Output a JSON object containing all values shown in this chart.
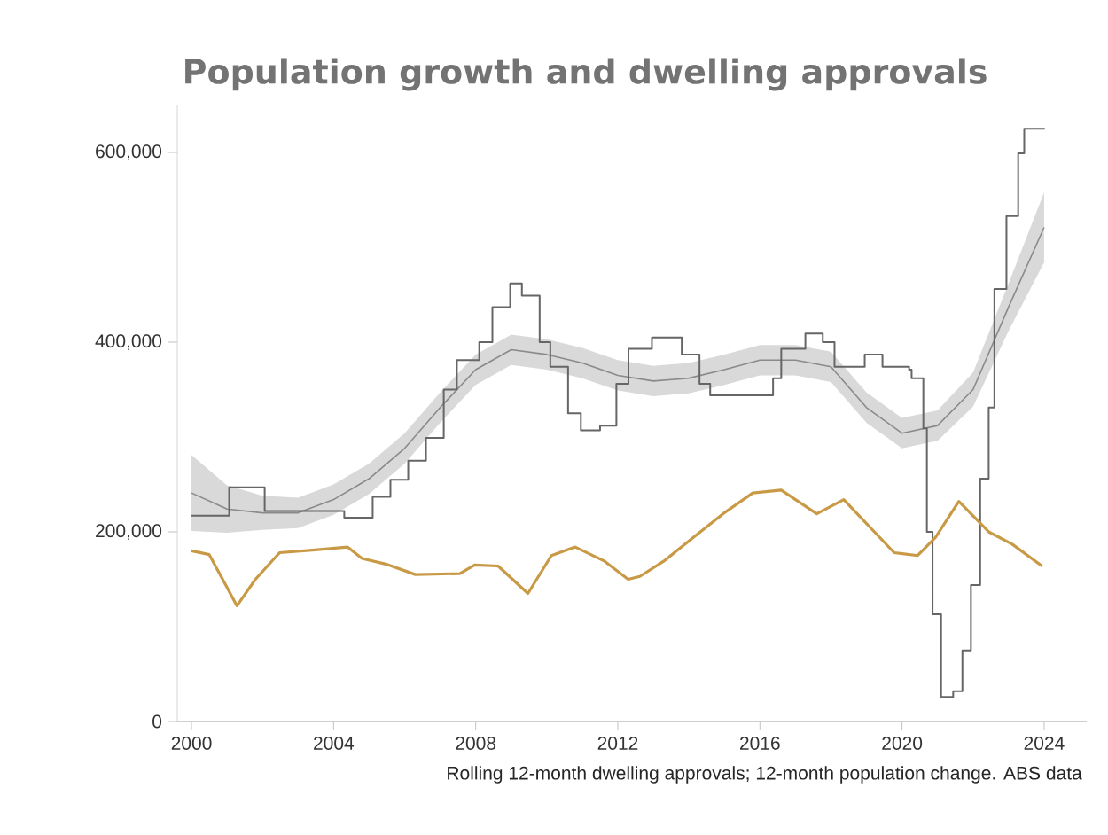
{
  "chart_data": {
    "type": "line",
    "title": "Population growth and dwelling approvals",
    "annotations": [
      "Rolling 12-month dwelling approvals; 12-month population change. ABS data"
    ],
    "xlim": [
      1999.6,
      2025.2
    ],
    "xticks": [
      2000,
      2004,
      2008,
      2012,
      2016,
      2020,
      2024
    ],
    "ylim": [
      0,
      650000
    ],
    "yticks": [
      {
        "value": 0,
        "label": "0"
      },
      {
        "value": 200000,
        "label": "200,000"
      },
      {
        "value": 400000,
        "label": "400,000"
      },
      {
        "value": 600000,
        "label": "600,000"
      }
    ],
    "series": [
      {
        "color": "#8a8a8a",
        "x": [
          2000,
          2001,
          2002,
          2003,
          2004,
          2005,
          2006,
          2007,
          2008,
          2009,
          2010,
          2011,
          2012,
          2013,
          2014,
          2015,
          2016,
          2017,
          2018,
          2019,
          2020,
          2021,
          2022,
          2023,
          2024
        ],
        "values": [
          241000,
          224000,
          220000,
          220000,
          234000,
          256000,
          288000,
          331000,
          371000,
          392000,
          387000,
          378000,
          365000,
          359000,
          362000,
          371000,
          381000,
          381000,
          374000,
          331000,
          304000,
          312000,
          350000,
          437000,
          521000
        ],
        "lower": [
          201000,
          199000,
          202000,
          204000,
          218000,
          240000,
          272000,
          315000,
          355000,
          376000,
          371000,
          362000,
          349000,
          343000,
          346000,
          355000,
          365000,
          365000,
          358000,
          315000,
          288000,
          296000,
          332000,
          412000,
          484000
        ],
        "upper": [
          281000,
          249000,
          238000,
          236000,
          250000,
          272000,
          304000,
          347000,
          387000,
          408000,
          403000,
          394000,
          381000,
          375000,
          378000,
          387000,
          397000,
          397000,
          390000,
          347000,
          320000,
          328000,
          368000,
          462000,
          558000
        ]
      },
      {
        "type": "step",
        "color": "#666666",
        "x": [
          2000.0,
          2001.06,
          2002.06,
          2003.0,
          2004.3,
          2005.1,
          2005.6,
          2006.1,
          2006.6,
          2007.1,
          2007.47,
          2008.1,
          2008.47,
          2008.97,
          2009.3,
          2009.8,
          2010.1,
          2010.6,
          2010.96,
          2011.5,
          2011.96,
          2012.3,
          2012.96,
          2013.8,
          2014.3,
          2014.6,
          2015.95,
          2016.37,
          2016.6,
          2017.28,
          2017.77,
          2018.1,
          2018.6,
          2018.95,
          2019.45,
          2020.2,
          2020.27,
          2020.6,
          2020.7,
          2020.86,
          2021.1,
          2021.44,
          2021.7,
          2021.94,
          2022.2,
          2022.44,
          2022.6,
          2022.94,
          2023.27,
          2023.44,
          2024.02
        ],
        "values": [
          217000,
          247000,
          222000,
          222000,
          215000,
          237000,
          255000,
          275000,
          299000,
          350000,
          381000,
          400000,
          437000,
          462000,
          449000,
          400000,
          374000,
          325000,
          307000,
          312000,
          356000,
          393000,
          405000,
          387000,
          356000,
          344000,
          344000,
          362000,
          393000,
          409000,
          400000,
          374000,
          374000,
          387000,
          374000,
          371000,
          362000,
          309000,
          200000,
          113000,
          26000,
          32000,
          75000,
          144000,
          256000,
          331000,
          456000,
          533000,
          599000,
          625000,
          625000
        ]
      },
      {
        "color": "#c99a45",
        "x": [
          2000.0,
          2000.5,
          2001.28,
          2001.8,
          2002.48,
          2003.48,
          2004.39,
          2004.8,
          2005.47,
          2006.3,
          2007.55,
          2007.97,
          2008.63,
          2009.47,
          2010.13,
          2010.8,
          2011.63,
          2012.29,
          2012.62,
          2013.29,
          2014.12,
          2014.96,
          2015.8,
          2016.6,
          2017.6,
          2018.36,
          2019.78,
          2020.44,
          2020.94,
          2021.6,
          2022.44,
          2023.1,
          2023.94
        ],
        "values": [
          180000,
          176000,
          122000,
          150000,
          178000,
          181000,
          184000,
          172000,
          166000,
          155000,
          156000,
          165000,
          164000,
          135000,
          175000,
          184000,
          169000,
          150000,
          153000,
          169000,
          194000,
          219000,
          241000,
          244000,
          219000,
          234000,
          178000,
          175000,
          194000,
          232000,
          200000,
          187000,
          164000
        ]
      }
    ]
  }
}
